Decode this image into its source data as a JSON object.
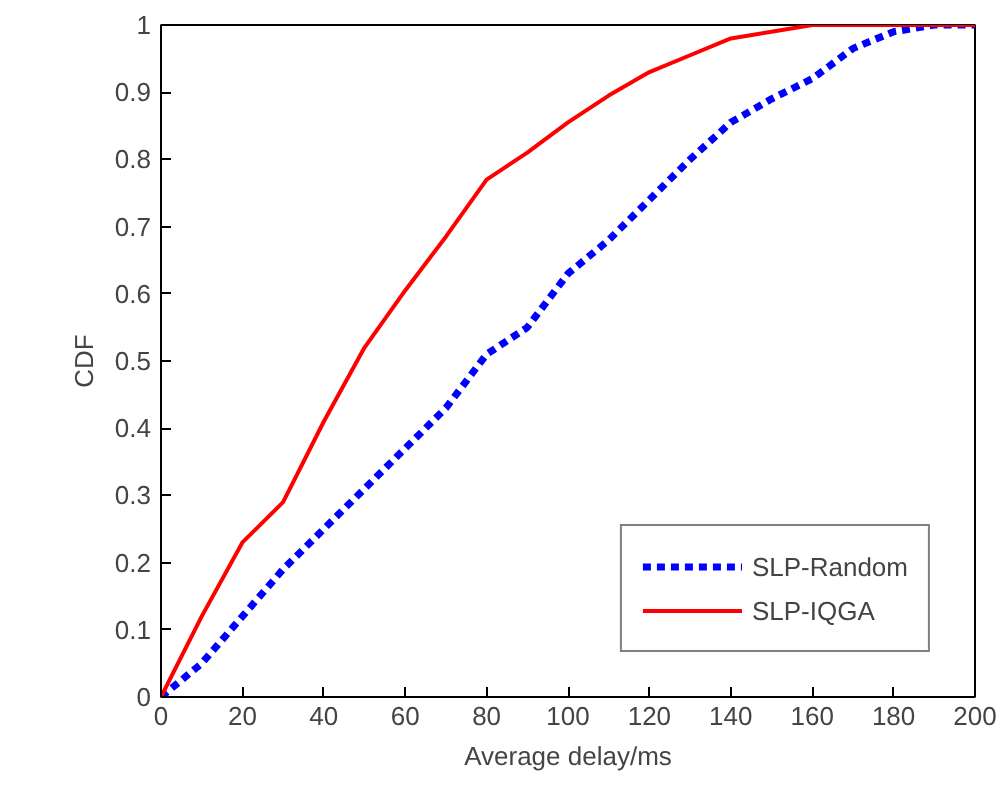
{
  "chart_data": {
    "type": "line",
    "xlabel": "Average delay/ms",
    "ylabel": "CDF",
    "x": [
      0,
      10,
      20,
      30,
      40,
      50,
      60,
      70,
      80,
      90,
      100,
      110,
      120,
      130,
      140,
      150,
      160,
      170,
      180,
      190,
      200
    ],
    "series": [
      {
        "name": "SLP-Random",
        "color": "#0000ff",
        "line_style": "dashed",
        "values": [
          0,
          0.05,
          0.12,
          0.19,
          0.25,
          0.31,
          0.37,
          0.43,
          0.51,
          0.55,
          0.63,
          0.68,
          0.74,
          0.8,
          0.855,
          0.89,
          0.92,
          0.965,
          0.99,
          1.0,
          1.0
        ]
      },
      {
        "name": "SLP-IQGA",
        "color": "#ff0000",
        "line_style": "solid",
        "values": [
          0,
          0.12,
          0.23,
          0.29,
          0.41,
          0.52,
          0.605,
          0.685,
          0.77,
          0.81,
          0.855,
          0.895,
          0.93,
          0.955,
          0.98,
          0.99,
          1.0,
          1.0,
          1.0,
          1.0,
          1.0
        ]
      }
    ],
    "xlim": [
      0,
      200
    ],
    "ylim": [
      0,
      1
    ],
    "xticks": [
      0,
      20,
      40,
      60,
      80,
      100,
      120,
      140,
      160,
      180,
      200
    ],
    "yticks": [
      0,
      0.1,
      0.2,
      0.3,
      0.4,
      0.5,
      0.6,
      0.7,
      0.8,
      0.9,
      1
    ],
    "grid": false,
    "legend": "bottom right",
    "marker": "none"
  }
}
